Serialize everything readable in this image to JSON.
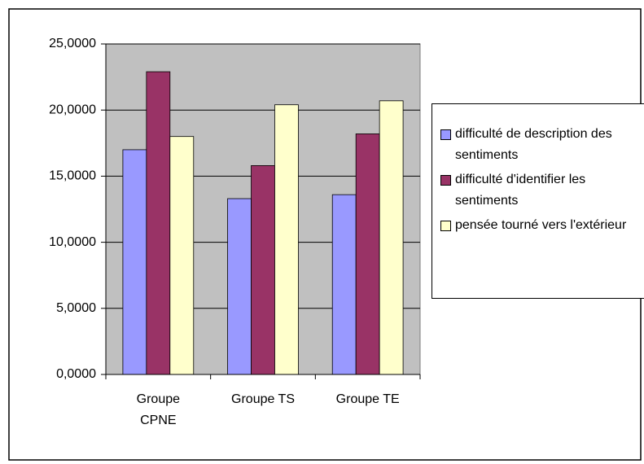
{
  "chart_data": {
    "type": "bar",
    "categories": [
      "Groupe CPNE",
      "Groupe TS",
      "Groupe TE"
    ],
    "series": [
      {
        "name": "difficulté de description des sentiments",
        "color": "#9999ff",
        "values": [
          17.0,
          13.3,
          13.6
        ]
      },
      {
        "name": "difficulté d'identifier les sentiments",
        "color": "#993366",
        "values": [
          22.9,
          15.8,
          18.2
        ]
      },
      {
        "name": "pensée tourné vers l'extérieur",
        "color": "#ffffcc",
        "values": [
          18.0,
          20.4,
          20.7
        ]
      }
    ],
    "ylim": [
      0,
      25
    ],
    "yticks": [
      {
        "value": 0,
        "label": "0,0000"
      },
      {
        "value": 5,
        "label": "5,0000"
      },
      {
        "value": 10,
        "label": "10,0000"
      },
      {
        "value": 15,
        "label": "15,0000"
      },
      {
        "value": 20,
        "label": "20,0000"
      },
      {
        "value": 25,
        "label": "25,0000"
      }
    ],
    "grid": true,
    "plot_background": "#c0c0c0",
    "legend": "right"
  }
}
